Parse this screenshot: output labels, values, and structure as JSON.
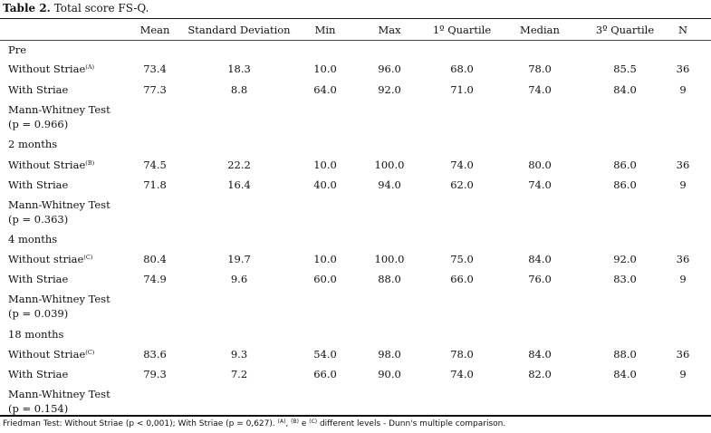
{
  "table": {
    "number_label": "Table 2.",
    "title": "Total score FS-Q.",
    "columns": [
      "Mean",
      "Standard Deviation",
      "Min",
      "Max",
      "1º Quartile",
      "Median",
      "3º Quartile",
      "N"
    ],
    "sections": [
      {
        "name": "Pre",
        "rows": [
          {
            "label": "Without Striae",
            "sup": "(A)",
            "values": [
              "73.4",
              "18.3",
              "10.0",
              "96.0",
              "68.0",
              "78.0",
              "85.5",
              "36"
            ]
          },
          {
            "label": "With Striae",
            "sup": "",
            "values": [
              "77.3",
              "8.8",
              "64.0",
              "92.0",
              "71.0",
              "74.0",
              "84.0",
              "9"
            ]
          }
        ],
        "test_name": "Mann-Whitney Test",
        "test_p": "(p = 0.966)"
      },
      {
        "name": "2 months",
        "rows": [
          {
            "label": "Without Striae",
            "sup": "(B)",
            "values": [
              "74.5",
              "22.2",
              "10.0",
              "100.0",
              "74.0",
              "80.0",
              "86.0",
              "36"
            ]
          },
          {
            "label": "With Striae",
            "sup": "",
            "values": [
              "71.8",
              "16.4",
              "40.0",
              "94.0",
              "62.0",
              "74.0",
              "86.0",
              "9"
            ]
          }
        ],
        "test_name": "Mann-Whitney Test",
        "test_p": "(p = 0.363)"
      },
      {
        "name": "4 months",
        "rows": [
          {
            "label": "Without striae",
            "sup": "(C)",
            "values": [
              "80.4",
              "19.7",
              "10.0",
              "100.0",
              "75.0",
              "84.0",
              "92.0",
              "36"
            ]
          },
          {
            "label": "With Striae",
            "sup": "",
            "values": [
              "74.9",
              "9.6",
              "60.0",
              "88.0",
              "66.0",
              "76.0",
              "83.0",
              "9"
            ]
          }
        ],
        "test_name": "Mann-Whitney Test",
        "test_p": "(p = 0.039)"
      },
      {
        "name": "18 months",
        "rows": [
          {
            "label": "Without Striae",
            "sup": "(C)",
            "values": [
              "83.6",
              "9.3",
              "54.0",
              "98.0",
              "78.0",
              "84.0",
              "88.0",
              "36"
            ]
          },
          {
            "label": "With Striae",
            "sup": "",
            "values": [
              "79.3",
              "7.2",
              "66.0",
              "90.0",
              "74.0",
              "82.0",
              "84.0",
              "9"
            ]
          }
        ],
        "test_name": "Mann-Whitney Test",
        "test_p": "(p = 0.154)"
      }
    ],
    "footnote": {
      "part1": "Friedman Test: Without Striae (p < 0,001); With Striae (p = 0,627). ",
      "sup_a": "(A)",
      "sep1": ", ",
      "sup_b": "(B)",
      "sep2": " e ",
      "sup_c": "(C)",
      "part2": " different levels - Dunn's multiple comparison."
    }
  }
}
